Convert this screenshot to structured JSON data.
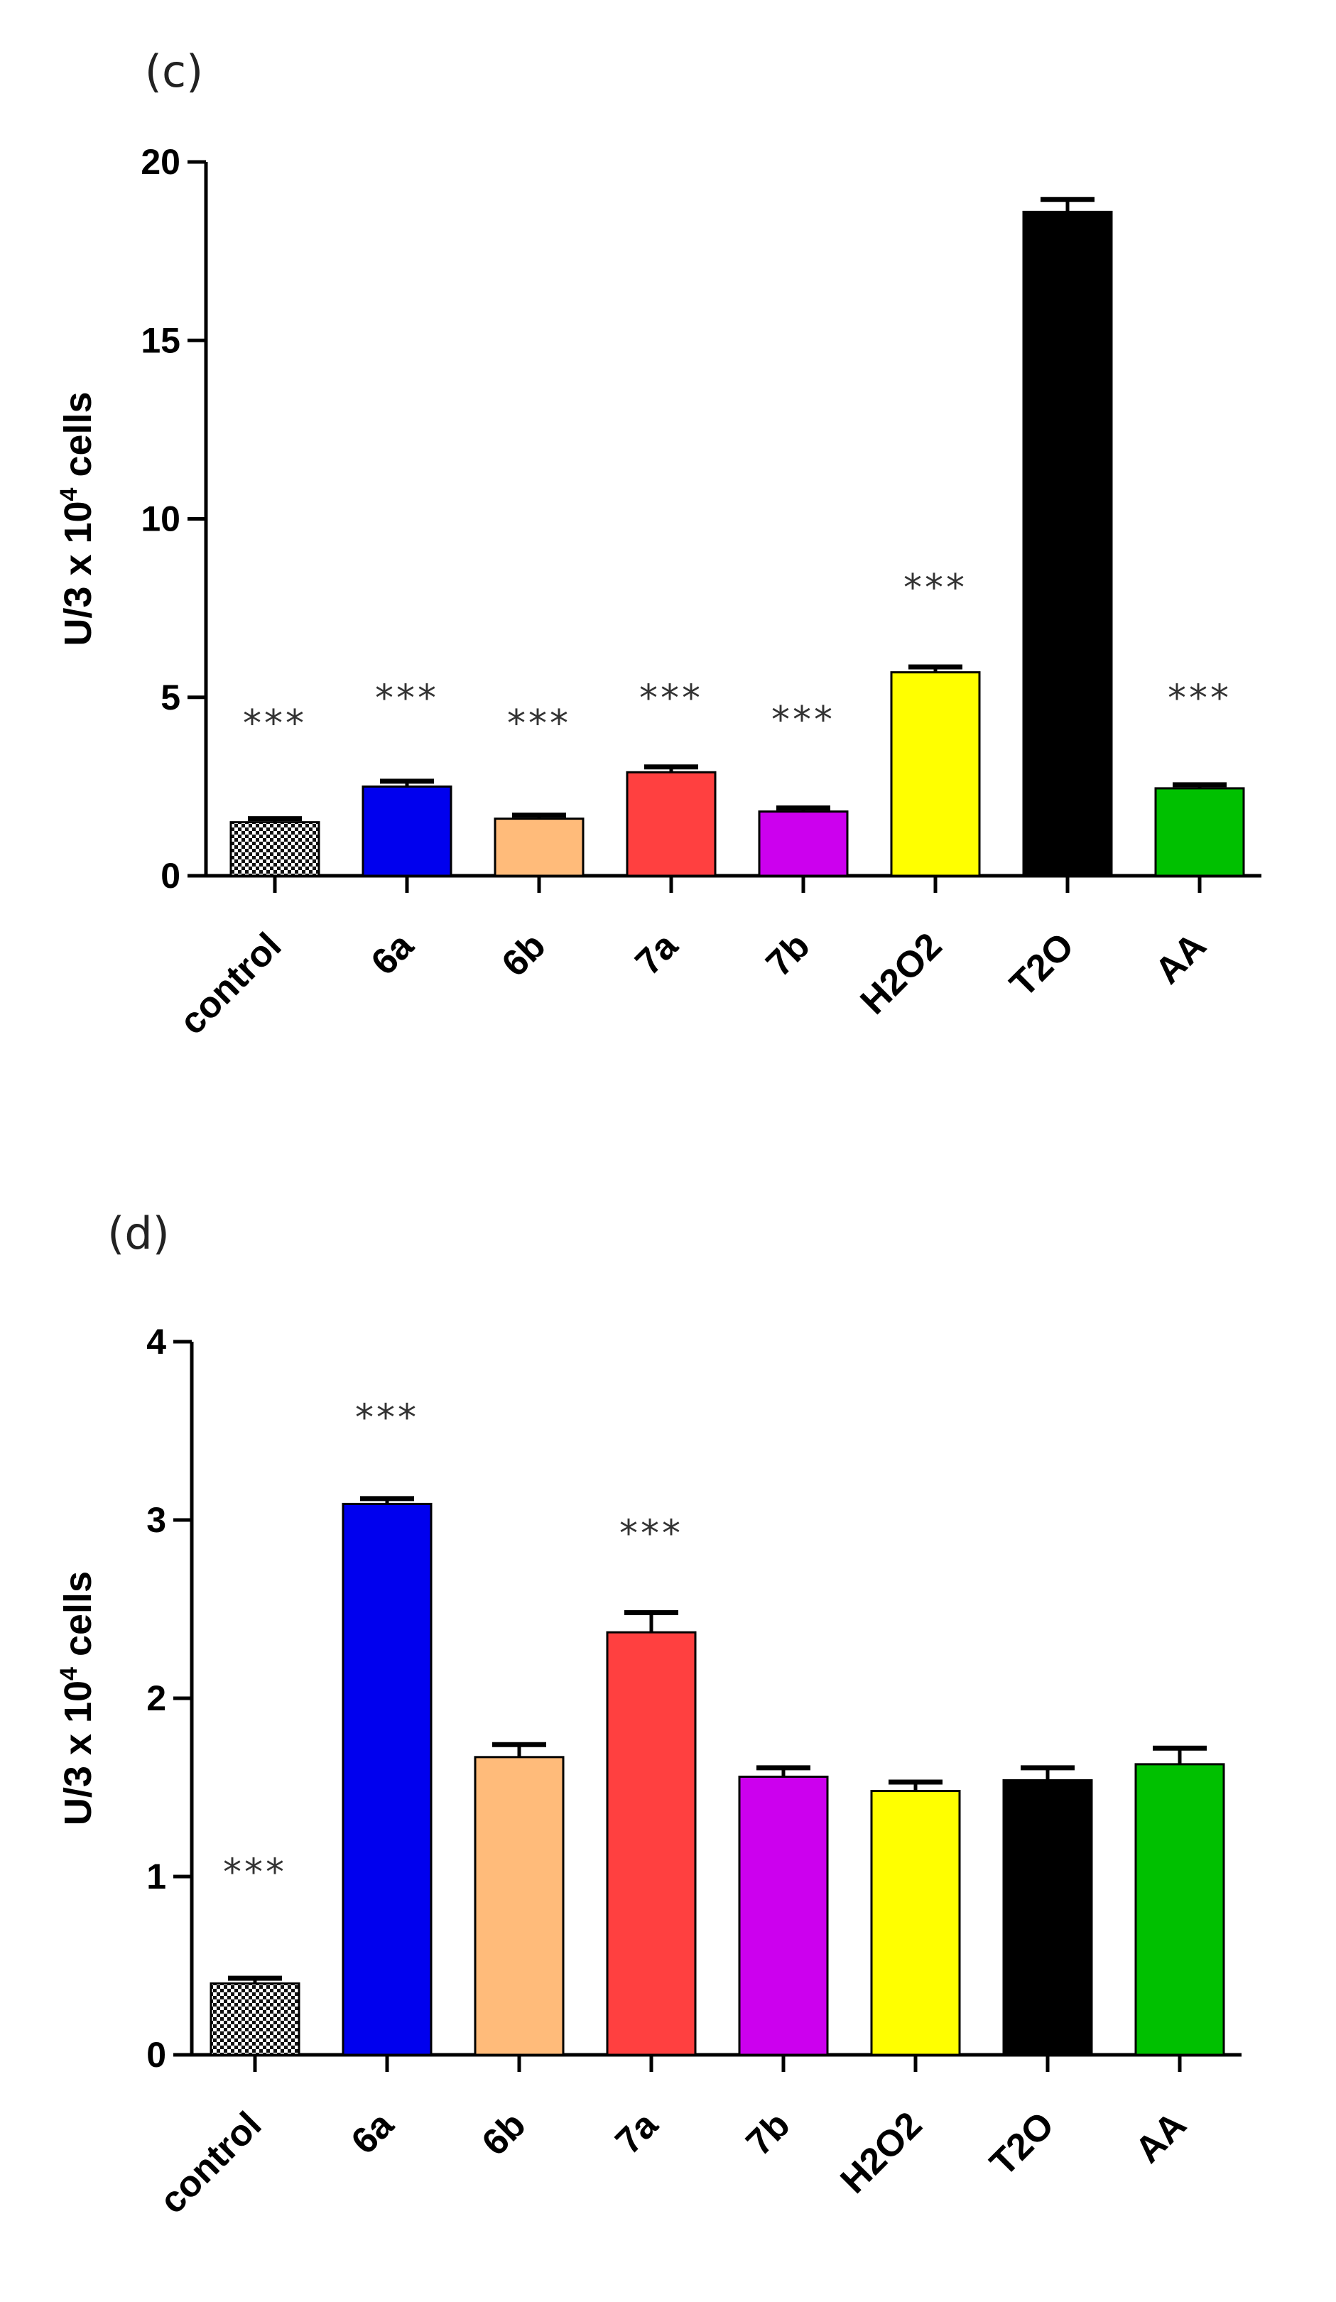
{
  "chart_data": [
    {
      "type": "bar",
      "panel_label": "(c)",
      "title": "",
      "xlabel": "",
      "ylabel": "U/3 x 10",
      "ylabel_superscript": "4",
      "ylabel_suffix": " cells",
      "ylim": [
        0,
        20
      ],
      "yticks": [
        0,
        5,
        10,
        15,
        20
      ],
      "grid": false,
      "categories": [
        "control",
        "6a",
        "6b",
        "7a",
        "7b",
        "H2O2",
        "T2O",
        "AA"
      ],
      "values": [
        1.5,
        2.5,
        1.6,
        2.9,
        1.8,
        5.7,
        18.6,
        2.45
      ],
      "errors": [
        0.1,
        0.15,
        0.1,
        0.15,
        0.1,
        0.15,
        0.35,
        0.1
      ],
      "significance": [
        "***",
        "***",
        "***",
        "***",
        "***",
        "***",
        "",
        "***"
      ],
      "significance_values": [
        4.4,
        5.1,
        4.4,
        5.1,
        4.5,
        8.2,
        null,
        5.1
      ],
      "bar_colors": [
        "pattern",
        "#0000ee",
        "#ffbb7a",
        "#ff4040",
        "#cc00ee",
        "#ffff00",
        "#000000",
        "#00c000"
      ]
    },
    {
      "type": "bar",
      "panel_label": "(d)",
      "title": "",
      "xlabel": "",
      "ylabel": "U/3 x 10",
      "ylabel_superscript": "4",
      "ylabel_suffix": " cells",
      "ylim": [
        0,
        4
      ],
      "yticks": [
        0,
        1,
        2,
        3,
        4
      ],
      "grid": false,
      "categories": [
        "control",
        "6a",
        "6b",
        "7a",
        "7b",
        "H2O2",
        "T2O",
        "AA"
      ],
      "values": [
        0.4,
        3.09,
        1.67,
        2.37,
        1.56,
        1.48,
        1.54,
        1.63
      ],
      "errors": [
        0.03,
        0.03,
        0.07,
        0.11,
        0.05,
        0.05,
        0.07,
        0.09
      ],
      "significance": [
        "***",
        "***",
        "",
        "***",
        "",
        "",
        "",
        ""
      ],
      "significance_values": [
        1.05,
        3.6,
        null,
        2.95,
        null,
        null,
        null,
        null
      ],
      "bar_colors": [
        "pattern",
        "#0000ee",
        "#ffbb7a",
        "#ff4040",
        "#cc00ee",
        "#ffff00",
        "#000000",
        "#00c000"
      ]
    }
  ]
}
